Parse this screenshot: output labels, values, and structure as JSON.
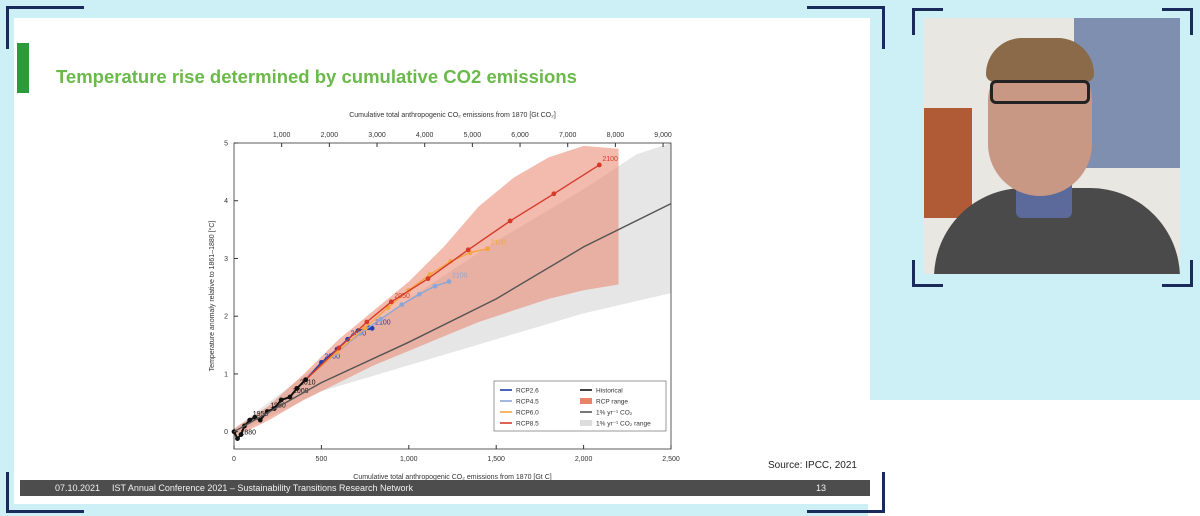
{
  "slide": {
    "title": "Temperature rise determined by cumulative CO2 emissions",
    "source": "Source: IPCC, 2021",
    "footer": {
      "date": "07.10.2021",
      "text": "IST Annual Conference 2021 – Sustainability Transitions Research Network",
      "page": "13"
    },
    "accent_color": "#2e9a3c",
    "title_color": "#6ab94a"
  },
  "chart_data": {
    "type": "line",
    "xlabel": "Cumulative total anthropogenic CO₂ emissions from 1870 [Gt C]",
    "x2label": "Cumulative total anthropogenic CO₂ emissions from 1870 [Gt CO₂]",
    "ylabel": "Temperature anomaly relative to 1861–1880 [°C]",
    "xlim": [
      0,
      2500
    ],
    "ylim": [
      -0.3,
      5
    ],
    "x_ticks": [
      "0",
      "500",
      "1,000",
      "1,500",
      "2,000",
      "2,500"
    ],
    "y_ticks": [
      "0",
      "1",
      "2",
      "3",
      "4",
      "5"
    ],
    "x2_ticks": [
      {
        "label": "1,000",
        "gtc": 272.7
      },
      {
        "label": "2,000",
        "gtc": 545.5
      },
      {
        "label": "3,000",
        "gtc": 818.2
      },
      {
        "label": "4,000",
        "gtc": 1090.9
      },
      {
        "label": "5,000",
        "gtc": 1363.6
      },
      {
        "label": "6,000",
        "gtc": 1636.4
      },
      {
        "label": "7,000",
        "gtc": 1909.1
      },
      {
        "label": "8,000",
        "gtc": 2181.8
      },
      {
        "label": "9,000",
        "gtc": 2454.5
      }
    ],
    "ranges": [
      {
        "name": "RCP range",
        "color": "#e9846a",
        "opacity": 0.55,
        "upper": [
          [
            0,
            0.05
          ],
          [
            200,
            0.45
          ],
          [
            400,
            1.0
          ],
          [
            600,
            1.6
          ],
          [
            800,
            2.1
          ],
          [
            1000,
            2.6
          ],
          [
            1200,
            3.2
          ],
          [
            1400,
            3.9
          ],
          [
            1600,
            4.4
          ],
          [
            1800,
            4.75
          ],
          [
            2000,
            4.95
          ],
          [
            2200,
            4.9
          ]
        ],
        "lower": [
          [
            0,
            -0.1
          ],
          [
            200,
            0.2
          ],
          [
            400,
            0.55
          ],
          [
            600,
            0.85
          ],
          [
            800,
            1.15
          ],
          [
            1000,
            1.4
          ],
          [
            1200,
            1.65
          ],
          [
            1400,
            1.9
          ],
          [
            1600,
            2.1
          ],
          [
            1800,
            2.3
          ],
          [
            2000,
            2.45
          ],
          [
            2200,
            2.55
          ]
        ]
      },
      {
        "name": "1% yr⁻¹ CO₂ range",
        "color": "#dcdcdc",
        "opacity": 0.7,
        "upper": [
          [
            0,
            0.05
          ],
          [
            500,
            1.2
          ],
          [
            1000,
            2.3
          ],
          [
            1500,
            3.3
          ],
          [
            2000,
            4.2
          ],
          [
            2300,
            4.8
          ],
          [
            2500,
            5.0
          ]
        ],
        "lower": [
          [
            0,
            -0.05
          ],
          [
            500,
            0.7
          ],
          [
            1000,
            1.15
          ],
          [
            1500,
            1.6
          ],
          [
            2000,
            2.05
          ],
          [
            2500,
            2.4
          ]
        ]
      }
    ],
    "series": [
      {
        "name": "RCP2.6",
        "color": "#1f3fb0",
        "points": [
          [
            410,
            0.9
          ],
          [
            500,
            1.2
          ],
          [
            590,
            1.43
          ],
          [
            650,
            1.6
          ],
          [
            710,
            1.75
          ],
          [
            770,
            1.8
          ],
          [
            790,
            1.79
          ]
        ],
        "labels": [
          {
            "text": "2000",
            "x": 500,
            "y": 1.2
          },
          {
            "text": "2050",
            "x": 650,
            "y": 1.6
          },
          {
            "text": "2100",
            "x": 790,
            "y": 1.79
          }
        ]
      },
      {
        "name": "RCP4.5",
        "color": "#8aa6d8",
        "points": [
          [
            410,
            0.9
          ],
          [
            580,
            1.35
          ],
          [
            720,
            1.7
          ],
          [
            840,
            1.95
          ],
          [
            960,
            2.2
          ],
          [
            1060,
            2.38
          ],
          [
            1150,
            2.52
          ],
          [
            1230,
            2.6
          ]
        ],
        "labels": [
          {
            "text": "2100",
            "x": 1230,
            "y": 2.6
          }
        ]
      },
      {
        "name": "RCP6.0",
        "color": "#f5a442",
        "points": [
          [
            410,
            0.9
          ],
          [
            590,
            1.38
          ],
          [
            750,
            1.8
          ],
          [
            880,
            2.15
          ],
          [
            1000,
            2.45
          ],
          [
            1120,
            2.72
          ],
          [
            1240,
            2.95
          ],
          [
            1350,
            3.1
          ],
          [
            1450,
            3.17
          ]
        ],
        "labels": [
          {
            "text": "2100",
            "x": 1450,
            "y": 3.17
          }
        ]
      },
      {
        "name": "RCP8.5",
        "color": "#d73a2a",
        "points": [
          [
            410,
            0.9
          ],
          [
            600,
            1.45
          ],
          [
            760,
            1.9
          ],
          [
            900,
            2.25
          ],
          [
            1110,
            2.65
          ],
          [
            1340,
            3.15
          ],
          [
            1580,
            3.65
          ],
          [
            1830,
            4.12
          ],
          [
            2090,
            4.62
          ]
        ],
        "labels": [
          {
            "text": "2050",
            "x": 900,
            "y": 2.25
          },
          {
            "text": "2100",
            "x": 2090,
            "y": 4.62
          }
        ]
      },
      {
        "name": "Historical",
        "color": "#111111",
        "points": [
          [
            0,
            0
          ],
          [
            20,
            -0.12
          ],
          [
            40,
            -0.05
          ],
          [
            60,
            0.1
          ],
          [
            90,
            0.2
          ],
          [
            120,
            0.25
          ],
          [
            150,
            0.2
          ],
          [
            190,
            0.35
          ],
          [
            230,
            0.4
          ],
          [
            270,
            0.55
          ],
          [
            320,
            0.6
          ],
          [
            360,
            0.75
          ],
          [
            410,
            0.9
          ]
        ],
        "labels": [
          {
            "text": "1880",
            "x": 20,
            "y": -0.12
          },
          {
            "text": "1950",
            "x": 90,
            "y": 0.2
          },
          {
            "text": "1980",
            "x": 190,
            "y": 0.35
          },
          {
            "text": "2000",
            "x": 320,
            "y": 0.6
          },
          {
            "text": "2010",
            "x": 360,
            "y": 0.75
          }
        ]
      },
      {
        "name": "1% yr⁻¹ CO₂",
        "color": "#555555",
        "markers": false,
        "points": [
          [
            0,
            0
          ],
          [
            500,
            0.85
          ],
          [
            1000,
            1.55
          ],
          [
            1500,
            2.3
          ],
          [
            2000,
            3.2
          ],
          [
            2500,
            3.95
          ]
        ],
        "labels": []
      }
    ],
    "legend": {
      "position": "bottom-right",
      "entries": [
        {
          "label": "RCP2.6",
          "color": "#1f3fb0",
          "kind": "line"
        },
        {
          "label": "Historical",
          "color": "#111111",
          "kind": "line"
        },
        {
          "label": "RCP4.5",
          "color": "#8aa6d8",
          "kind": "line"
        },
        {
          "label": "RCP range",
          "color": "#e9846a",
          "kind": "patch"
        },
        {
          "label": "RCP6.0",
          "color": "#f5a442",
          "kind": "line"
        },
        {
          "label": "1% yr⁻¹ CO₂",
          "color": "#555555",
          "kind": "line"
        },
        {
          "label": "RCP8.5",
          "color": "#d73a2a",
          "kind": "line"
        },
        {
          "label": "1% yr⁻¹ CO₂ range",
          "color": "#dcdcdc",
          "kind": "patch"
        }
      ]
    },
    "grid": false
  },
  "webcam": {
    "colors": {
      "wall": "#e9e7e2",
      "window": "#7f8fb0",
      "sweater": "#4a4a4a",
      "skin": "#c89884",
      "hair": "#8a6a48",
      "shelf": "#b05a36"
    }
  }
}
